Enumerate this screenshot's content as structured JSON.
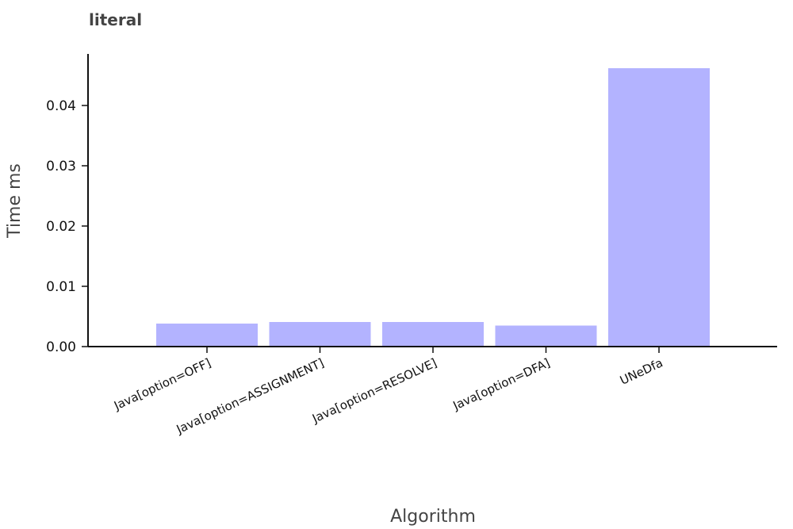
{
  "chart_data": {
    "type": "bar",
    "title": "literal",
    "xlabel": "Algorithm",
    "ylabel": "Time ms",
    "categories": [
      "Java[option=OFF]",
      "Java[option=ASSIGNMENT]",
      "Java[option=RESOLVE]",
      "Java[option=DFA]",
      "UNeDfa"
    ],
    "values": [
      0.0038,
      0.0041,
      0.0041,
      0.0035,
      0.0462
    ],
    "yticks": [
      "0.00",
      "0.01",
      "0.02",
      "0.03",
      "0.04"
    ],
    "ylim": [
      0,
      0.0484
    ],
    "bar_color": "#b3b3ff",
    "grid": false,
    "legend": "none"
  }
}
